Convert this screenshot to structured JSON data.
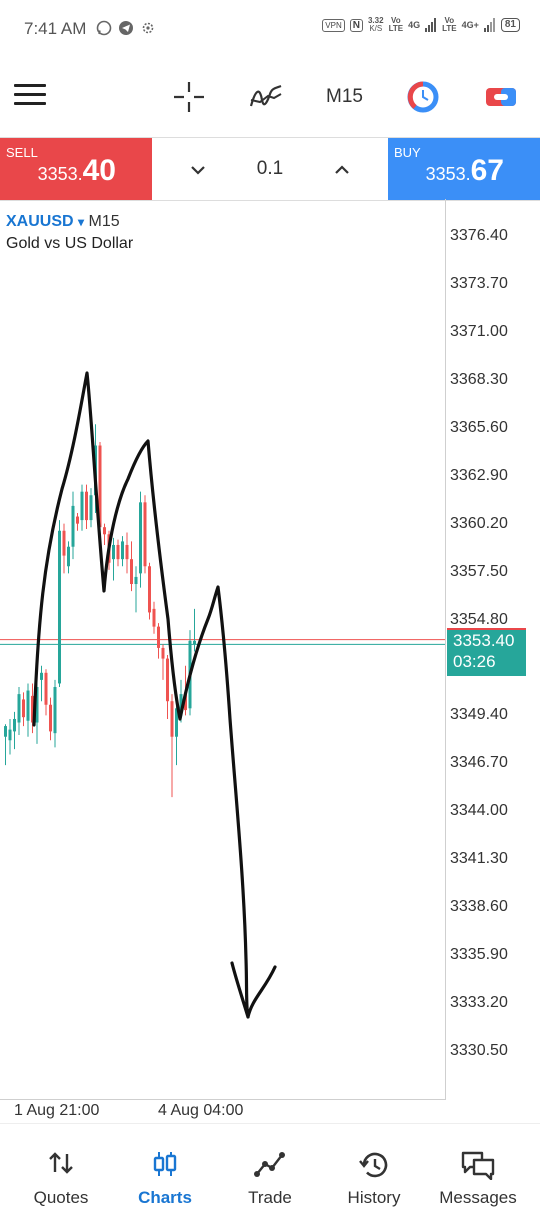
{
  "status_bar": {
    "time": "7:41 AM",
    "vpn": "VPN",
    "nfc": "N",
    "speed": "3.32",
    "speed_unit": "K/S",
    "vo1_top": "Vo",
    "vo1_bottom": "LTE",
    "net1": "4G",
    "vo2_top": "Vo",
    "vo2_bottom": "LTE",
    "net2": "4G+",
    "battery": "81"
  },
  "toolbar": {
    "timeframe": "M15"
  },
  "trade_panel": {
    "sell_label": "SELL",
    "sell_price_small": "3353.",
    "sell_price_big": "40",
    "volume": "0.1",
    "buy_label": "BUY",
    "buy_price_small": "3353.",
    "buy_price_big": "67"
  },
  "chart": {
    "symbol": "XAUUSD",
    "symbol_arrow": "▾",
    "timeframe": "M15",
    "description": "Gold vs US Dollar",
    "current_price": "3353.40",
    "countdown": "03:26",
    "bid_line": 3353.4,
    "ask_line": 3353.67
  },
  "chart_data": {
    "type": "candlestick",
    "y_ticks": [
      "3376.40",
      "3373.70",
      "3371.00",
      "3368.30",
      "3365.60",
      "3362.90",
      "3360.20",
      "3357.50",
      "3354.80",
      "3349.40",
      "3346.70",
      "3344.00",
      "3341.30",
      "3338.60",
      "3335.90",
      "3333.20",
      "3330.50"
    ],
    "ylim": [
      3329.0,
      3378.6
    ],
    "x_ticks": [
      "1 Aug 21:00",
      "4 Aug 04:00"
    ],
    "up_color": "#26a69a",
    "down_color": "#ef5350",
    "candles": [
      {
        "o": 3348.2,
        "h": 3348.9,
        "l": 3346.6,
        "c": 3348.8
      },
      {
        "o": 3348.0,
        "h": 3349.2,
        "l": 3347.2,
        "c": 3348.6
      },
      {
        "o": 3348.5,
        "h": 3349.6,
        "l": 3347.5,
        "c": 3349.2
      },
      {
        "o": 3349.0,
        "h": 3351.0,
        "l": 3348.3,
        "c": 3350.6
      },
      {
        "o": 3350.3,
        "h": 3350.7,
        "l": 3348.8,
        "c": 3349.3
      },
      {
        "o": 3349.1,
        "h": 3351.2,
        "l": 3348.2,
        "c": 3350.8
      },
      {
        "o": 3350.5,
        "h": 3351.2,
        "l": 3348.4,
        "c": 3349.0
      },
      {
        "o": 3349.0,
        "h": 3351.4,
        "l": 3347.8,
        "c": 3351.0
      },
      {
        "o": 3351.4,
        "h": 3352.2,
        "l": 3350.2,
        "c": 3351.8
      },
      {
        "o": 3351.8,
        "h": 3352.0,
        "l": 3349.4,
        "c": 3350.0
      },
      {
        "o": 3350.0,
        "h": 3350.4,
        "l": 3348.0,
        "c": 3348.5
      },
      {
        "o": 3348.4,
        "h": 3351.4,
        "l": 3347.6,
        "c": 3351.0
      },
      {
        "o": 3351.2,
        "h": 3360.4,
        "l": 3351.0,
        "c": 3359.8
      },
      {
        "o": 3359.8,
        "h": 3360.2,
        "l": 3357.4,
        "c": 3358.4
      },
      {
        "o": 3357.8,
        "h": 3359.2,
        "l": 3357.4,
        "c": 3358.9
      },
      {
        "o": 3358.9,
        "h": 3362.0,
        "l": 3358.2,
        "c": 3361.2
      },
      {
        "o": 3360.6,
        "h": 3360.8,
        "l": 3359.8,
        "c": 3360.2
      },
      {
        "o": 3360.4,
        "h": 3362.4,
        "l": 3359.8,
        "c": 3362.0
      },
      {
        "o": 3362.0,
        "h": 3362.4,
        "l": 3359.9,
        "c": 3360.4
      },
      {
        "o": 3360.4,
        "h": 3362.2,
        "l": 3360.0,
        "c": 3361.8
      },
      {
        "o": 3361.8,
        "h": 3365.8,
        "l": 3360.8,
        "c": 3364.6
      },
      {
        "o": 3364.6,
        "h": 3364.8,
        "l": 3359.4,
        "c": 3360.0
      },
      {
        "o": 3360.0,
        "h": 3360.2,
        "l": 3359.0,
        "c": 3359.6
      },
      {
        "o": 3359.6,
        "h": 3359.8,
        "l": 3357.6,
        "c": 3358.0
      },
      {
        "o": 3358.2,
        "h": 3359.4,
        "l": 3357.0,
        "c": 3359.0
      },
      {
        "o": 3359.0,
        "h": 3359.3,
        "l": 3357.8,
        "c": 3358.2
      },
      {
        "o": 3358.2,
        "h": 3359.5,
        "l": 3357.8,
        "c": 3359.2
      },
      {
        "o": 3359.0,
        "h": 3359.7,
        "l": 3357.4,
        "c": 3358.2
      },
      {
        "o": 3358.2,
        "h": 3359.2,
        "l": 3356.4,
        "c": 3356.8
      },
      {
        "o": 3356.8,
        "h": 3357.8,
        "l": 3355.2,
        "c": 3357.2
      },
      {
        "o": 3357.4,
        "h": 3362.0,
        "l": 3356.6,
        "c": 3361.4
      },
      {
        "o": 3361.4,
        "h": 3361.8,
        "l": 3357.4,
        "c": 3357.8
      },
      {
        "o": 3357.8,
        "h": 3358.0,
        "l": 3354.8,
        "c": 3355.2
      },
      {
        "o": 3355.4,
        "h": 3355.8,
        "l": 3354.0,
        "c": 3354.4
      },
      {
        "o": 3354.4,
        "h": 3354.6,
        "l": 3352.6,
        "c": 3353.2
      },
      {
        "o": 3353.2,
        "h": 3353.4,
        "l": 3351.4,
        "c": 3352.6
      },
      {
        "o": 3352.6,
        "h": 3352.8,
        "l": 3349.2,
        "c": 3350.2
      },
      {
        "o": 3350.2,
        "h": 3350.6,
        "l": 3344.8,
        "c": 3348.2
      },
      {
        "o": 3348.2,
        "h": 3350.4,
        "l": 3346.6,
        "c": 3349.8
      },
      {
        "o": 3349.4,
        "h": 3351.4,
        "l": 3349.0,
        "c": 3350.6
      },
      {
        "o": 3350.6,
        "h": 3352.2,
        "l": 3349.4,
        "c": 3349.7
      },
      {
        "o": 3349.8,
        "h": 3354.2,
        "l": 3349.4,
        "c": 3353.6
      },
      {
        "o": 3353.4,
        "h": 3355.4,
        "l": 3353.0,
        "c": 3353.6
      }
    ]
  },
  "bottom_nav": [
    {
      "label": "Quotes",
      "icon": "quotes-arrows-icon",
      "active": false
    },
    {
      "label": "Charts",
      "icon": "charts-candles-icon",
      "active": true
    },
    {
      "label": "Trade",
      "icon": "trade-line-icon",
      "active": false
    },
    {
      "label": "History",
      "icon": "history-clock-icon",
      "active": false
    },
    {
      "label": "Messages",
      "icon": "messages-chat-icon",
      "active": false
    }
  ],
  "colors": {
    "sell": "#e9474a",
    "buy": "#3b8ff7",
    "accent": "#1976d2",
    "bid_line": "#26a69a",
    "ask_line": "#ef5350"
  }
}
